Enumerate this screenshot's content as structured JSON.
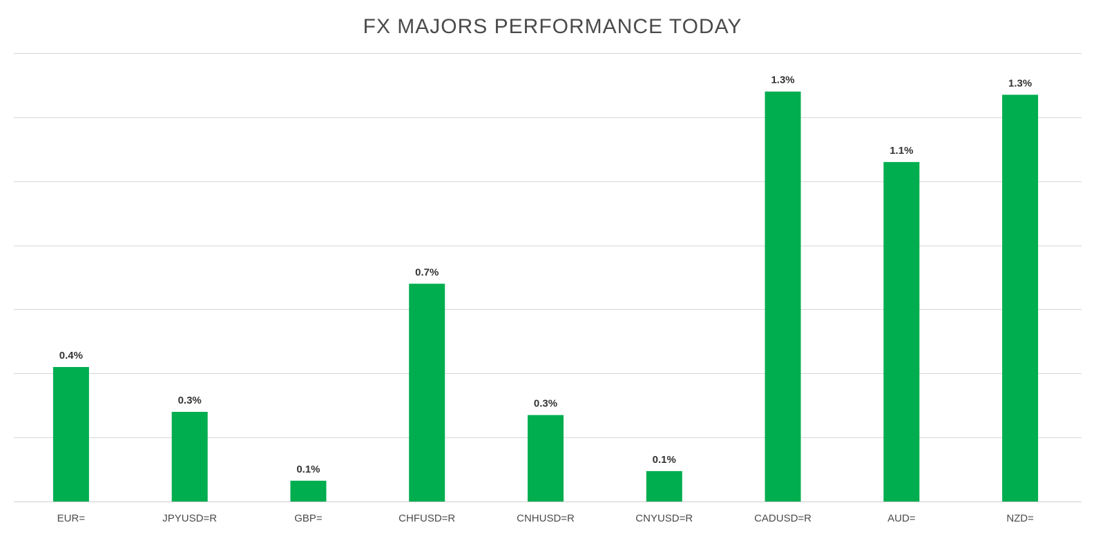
{
  "chart_data": {
    "type": "bar",
    "title": "FX MAJORS PERFORMANCE TODAY",
    "xlabel": "",
    "ylabel": "",
    "ylim": [
      0,
      1.4
    ],
    "grid": true,
    "legend": "none",
    "categories": [
      "EUR=",
      "JPYUSD=R",
      "GBP=",
      "CHFUSD=R",
      "CNHUSD=R",
      "CNYUSD=R",
      "CADUSD=R",
      "AUD=",
      "NZD="
    ],
    "values": [
      0.42,
      0.28,
      0.065,
      0.68,
      0.27,
      0.095,
      1.28,
      1.06,
      1.27
    ],
    "data_labels": [
      "0.4%",
      "0.3%",
      "0.1%",
      "0.7%",
      "0.3%",
      "0.1%",
      "1.3%",
      "1.1%",
      "1.3%"
    ],
    "bar_color": "#00ad4f"
  }
}
